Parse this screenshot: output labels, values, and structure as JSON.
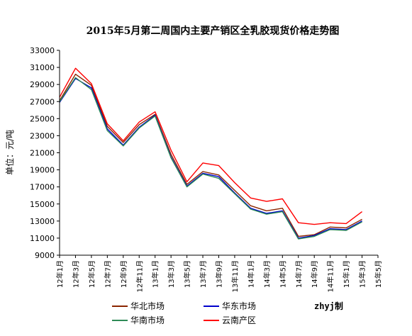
{
  "chart_data": {
    "type": "line",
    "title": "2015年5月第二周国内主要产销区全乳胶现货价格走势图",
    "ylabel": "单位：元/吨",
    "xlabel": "",
    "ylim": [
      9000,
      33000
    ],
    "yticks": [
      9000,
      11000,
      13000,
      15000,
      17000,
      19000,
      21000,
      23000,
      25000,
      27000,
      29000,
      31000,
      33000
    ],
    "x": [
      "12年1月",
      "12年3月",
      "12年5月",
      "12年7月",
      "12年9月",
      "12年11月",
      "13年1月",
      "13年3月",
      "13年5月",
      "13年7月",
      "13年9月",
      "13年11月",
      "14年1月",
      "14年3月",
      "14年5月",
      "14年7月",
      "14年9月",
      "14年11月",
      "15年1月",
      "15年3月",
      "15年5月"
    ],
    "grid": false,
    "legend_position": "bottom",
    "watermark": "zhyj制",
    "series": [
      {
        "name": "华北市场",
        "color": "#8B2500",
        "values": [
          27100,
          30200,
          28900,
          24100,
          22200,
          24300,
          25500,
          20800,
          17300,
          18800,
          18400,
          16600,
          14800,
          14200,
          14500,
          11200,
          11400,
          12300,
          12200,
          13200,
          null
        ]
      },
      {
        "name": "华东市场",
        "color": "#0000CC",
        "values": [
          26900,
          29700,
          28600,
          23800,
          21900,
          24000,
          25400,
          20500,
          17100,
          18600,
          18200,
          16300,
          14500,
          13900,
          14200,
          11000,
          11300,
          12100,
          12000,
          13000,
          null
        ]
      },
      {
        "name": "华南市场",
        "color": "#2E8B57",
        "values": [
          27000,
          29800,
          28400,
          23600,
          21800,
          23900,
          25300,
          20400,
          17000,
          18500,
          18000,
          16200,
          14400,
          13800,
          14100,
          10900,
          11200,
          12000,
          11900,
          12900,
          null
        ]
      },
      {
        "name": "云南产区",
        "color": "#FF0000",
        "values": [
          27500,
          30900,
          29100,
          24400,
          22400,
          24600,
          25800,
          21300,
          17600,
          19800,
          19500,
          17500,
          15700,
          15300,
          15600,
          12800,
          12600,
          12800,
          12700,
          14100,
          null
        ]
      }
    ]
  }
}
